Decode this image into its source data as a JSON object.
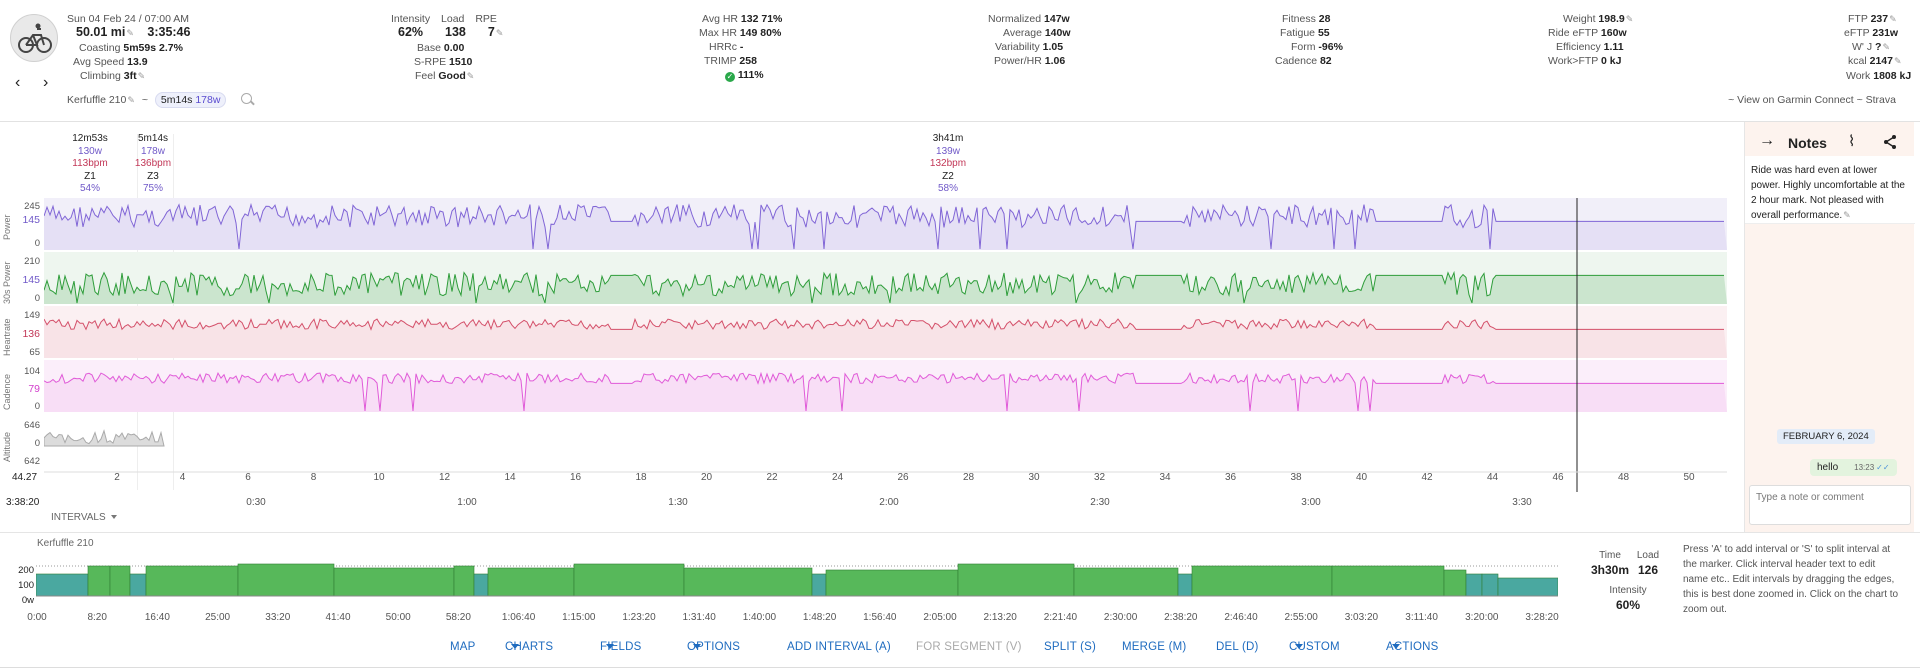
{
  "header": {
    "date": "Sun 04 Feb 24 / 07:00 AM",
    "distance": "50.01 mi",
    "duration": "3:35:46",
    "coasting_label": "Coasting",
    "coasting_val": "5m59s",
    "coasting_pct": "2.7%",
    "avgspeed_label": "Avg Speed",
    "avgspeed_val": "13.9",
    "climbing_label": "Climbing",
    "climbing_val": "3ft",
    "intensity_label": "Intensity",
    "intensity_val": "62%",
    "load_label": "Load",
    "load_val": "138",
    "rpe_label": "RPE",
    "rpe_val": "7",
    "base_label": "Base",
    "base_val": "0.00",
    "srpe_label": "S-RPE",
    "srpe_val": "1510",
    "feel_label": "Feel",
    "feel_val": "Good",
    "avghr_label": "Avg HR",
    "avghr_val": "132",
    "avghr_pct": "71%",
    "maxhr_label": "Max HR",
    "maxhr_val": "149",
    "maxhr_pct": "80%",
    "hrrc_label": "HRRc",
    "hrrc_val": "-",
    "trimp_label": "TRIMP",
    "trimp_val": "258",
    "check_pct": "111%",
    "np_label": "Normalized",
    "np_val": "147w",
    "avg_label": "Average",
    "avg_val": "140w",
    "var_label": "Variability",
    "var_val": "1.05",
    "phr_label": "Power/HR",
    "phr_val": "1.06",
    "fit_label": "Fitness",
    "fit_val": "28",
    "fat_label": "Fatigue",
    "fat_val": "55",
    "form_label": "Form",
    "form_val": "-96%",
    "cad_label": "Cadence",
    "cad_val": "82",
    "weight_label": "Weight",
    "weight_val": "198.9",
    "reftp_label": "Ride eFTP",
    "reftp_val": "160w",
    "eff_label": "Efficiency",
    "eff_val": "1.11",
    "wftp_label": "Work>FTP",
    "wftp_val": "0 kJ",
    "ftp_label": "FTP",
    "ftp_val": "237",
    "eftp_label": "eFTP",
    "eftp_val": "231w",
    "wj_label": "W' J",
    "wj_val": "?",
    "kcal_label": "kcal",
    "kcal_val": "2147",
    "work_label": "Work",
    "work_val": "1808 kJ",
    "activity_name": "Kerfuffle 210",
    "tilde": "~",
    "chip_time": "5m14s",
    "chip_power": "178w",
    "links_prefix": "~ View on Garmin Connect ~ Strava"
  },
  "intervals": [
    {
      "dur": "12m53s",
      "w": "130w",
      "bpm": "113bpm",
      "zone": "Z1",
      "pct": "54%"
    },
    {
      "dur": "5m14s",
      "w": "178w",
      "bpm": "136bpm",
      "zone": "Z3",
      "pct": "75%"
    },
    {
      "dur": "3h41m",
      "w": "139w",
      "bpm": "132bpm",
      "zone": "Z2",
      "pct": "58%"
    }
  ],
  "tracks": {
    "power": {
      "label": "Power",
      "max": "245",
      "mid": "145",
      "min": "0"
    },
    "power30": {
      "label": "30s Power",
      "max": "210",
      "mid": "145",
      "min": "0"
    },
    "hr": {
      "label": "Heartrate",
      "max": "149",
      "mid": "136",
      "min": "65"
    },
    "cadence": {
      "label": "Cadence",
      "max": "104",
      "mid": "79",
      "min": "0"
    },
    "altitude": {
      "label": "Altitude",
      "max": "646",
      "mid": "0",
      "min": "642"
    }
  },
  "distance_axis": {
    "start": "44.27",
    "ticks": [
      "2",
      "4",
      "6",
      "8",
      "10",
      "12",
      "14",
      "16",
      "18",
      "20",
      "22",
      "24",
      "26",
      "28",
      "30",
      "32",
      "34",
      "36",
      "38",
      "40",
      "42",
      "44",
      "46",
      "48",
      "50"
    ]
  },
  "time_axis": {
    "start": "3:38:20",
    "ticks": [
      "0:30",
      "1:00",
      "1:30",
      "2:00",
      "2:30",
      "3:00",
      "3:30"
    ]
  },
  "intervals_toggle": "INTERVALS",
  "notes": {
    "title": "Notes",
    "text": "Ride was hard even at lower power. Highly uncomfortable at the 2 hour mark. Not pleased with overall performance.",
    "date_chip": "FEBRUARY 6, 2024",
    "msg": "hello",
    "msg_time": "13:23",
    "input_placeholder": "Type a note or comment"
  },
  "bottom": {
    "title": "Kerfuffle 210",
    "y_ticks": [
      "200",
      "100",
      "0w"
    ],
    "x_ticks": [
      "0:00",
      "8:20",
      "16:40",
      "25:00",
      "33:20",
      "41:40",
      "50:00",
      "58:20",
      "1:06:40",
      "1:15:00",
      "1:23:20",
      "1:31:40",
      "1:40:00",
      "1:48:20",
      "1:56:40",
      "2:05:00",
      "2:13:20",
      "2:21:40",
      "2:30:00",
      "2:38:20",
      "2:46:40",
      "2:55:00",
      "3:03:20",
      "3:11:40",
      "3:20:00",
      "3:28:20"
    ],
    "time_label": "Time",
    "time_val": "3h30m",
    "load_label": "Load",
    "load_val": "126",
    "intensity_label": "Intensity",
    "intensity_val": "60%",
    "help": "Press 'A' to add interval or 'S' to split interval at the marker. Click interval header text to edit name etc.. Edit intervals by dragging the edges, this is best done zoomed in. Click on the chart to zoom out."
  },
  "toolbar": {
    "map": "MAP",
    "charts": "CHARTS",
    "fields": "FIELDS",
    "options": "OPTIONS",
    "add": "ADD INTERVAL (A)",
    "seg": "FOR SEGMENT (V)",
    "split": "SPLIT (S)",
    "merge": "MERGE (M)",
    "del": "DEL (D)",
    "custom": "CUSTOM",
    "actions": "ACTIONS"
  },
  "colors": {
    "power": "#8065d6",
    "power30": "#2e9d3a",
    "power30_hi": "#f2c21b",
    "hr": "#d4506a",
    "cadence": "#e05ad8",
    "altitude": "#aaaaaa",
    "link": "#1e6bbf",
    "bar_green": "#57b85a",
    "bar_teal": "#4aa8a0"
  }
}
